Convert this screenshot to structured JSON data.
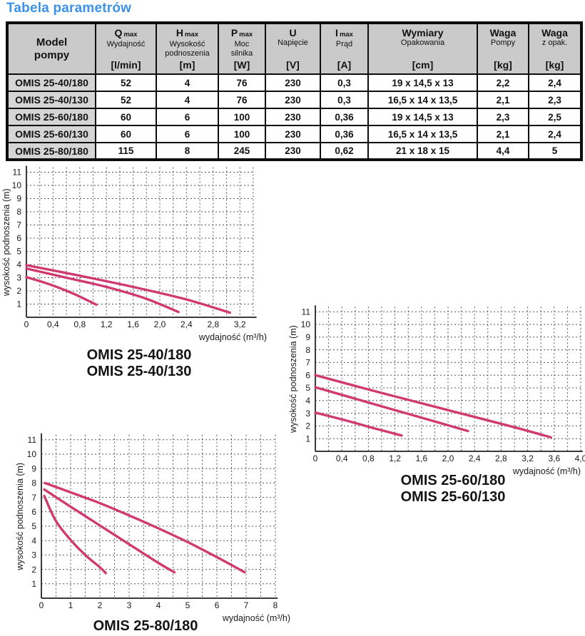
{
  "page_title": "Tabela parametrów",
  "colors": {
    "accent": "#3b92e8",
    "curve_pink": "#d13a6f",
    "grid": "#565656",
    "axis": "#3a3a3a",
    "table_header_bg": "#cacaca",
    "model_column_bg": "#d5d5d5"
  },
  "table": {
    "model_header": [
      "Model",
      "pompy"
    ],
    "columns": [
      {
        "symbol": "Q",
        "sub": "max",
        "desc": [
          "Wydajność"
        ],
        "unit": "[l/min]"
      },
      {
        "symbol": "H",
        "sub": "max",
        "desc": [
          "Wysokość",
          "podnoszenia"
        ],
        "unit": "[m]"
      },
      {
        "symbol": "P",
        "sub": "max",
        "desc": [
          "Moc",
          "silnika"
        ],
        "unit": "[W]"
      },
      {
        "symbol": "U",
        "sub": "",
        "desc": [
          "Napięcie"
        ],
        "unit": "[V]"
      },
      {
        "symbol": "I",
        "sub": "max",
        "desc": [
          "Prąd"
        ],
        "unit": "[A]"
      },
      {
        "symbol": "Wymiary",
        "sub": "",
        "desc": [
          "Opakowania"
        ],
        "unit": "[cm]"
      },
      {
        "symbol": "Waga",
        "sub": "",
        "desc": [
          "Pompy"
        ],
        "unit": "[kg]"
      },
      {
        "symbol": "Waga",
        "sub": "",
        "desc": [
          "z opak."
        ],
        "unit": "[kg]"
      }
    ],
    "rows": [
      [
        "OMIS 25-40/180",
        "52",
        "4",
        "76",
        "230",
        "0,3",
        "19 x 14,5 x 13",
        "2,2",
        "2,4"
      ],
      [
        "OMIS 25-40/130",
        "52",
        "4",
        "76",
        "230",
        "0,3",
        "16,5 x 14 x 13,5",
        "2,1",
        "2,3"
      ],
      [
        "OMIS 25-60/180",
        "60",
        "6",
        "100",
        "230",
        "0,36",
        "19 x 14,5 x 13",
        "2,3",
        "2,5"
      ],
      [
        "OMIS 25-60/130",
        "60",
        "6",
        "100",
        "230",
        "0,36",
        "16,5 x 14 x 13,5",
        "2,1",
        "2,4"
      ],
      [
        "OMIS 25-80/180",
        "115",
        "8",
        "245",
        "230",
        "0,62",
        "21 x 18 x 15",
        "4,4",
        "5"
      ]
    ]
  },
  "chart_data": [
    {
      "type": "line",
      "title_lines": [
        "OMIS 25-40/180",
        "OMIS 25-40/130"
      ],
      "xlabel": "wydajność (m³/h)",
      "ylabel": "wysokość podnoszenia (m)",
      "xlim": [
        0,
        3.45
      ],
      "ylim": [
        0,
        11.6
      ],
      "x_tick_step": 0.4,
      "x_minor_step": 0.2,
      "x_grid_end": 3.4,
      "x_tick_labels": [
        "0",
        "0,4",
        "0,8",
        "1,2",
        "1,6",
        "2,0",
        "2,4",
        "2,8",
        "3,2"
      ],
      "y_ticks": [
        1,
        2,
        3,
        4,
        5,
        6,
        7,
        8,
        9,
        10,
        11
      ],
      "grid": true,
      "legend": "none",
      "series": [
        {
          "name": "curve-1",
          "points": [
            [
              0,
              3.95
            ],
            [
              0.8,
              3.15
            ],
            [
              1.6,
              2.3
            ],
            [
              2.4,
              1.35
            ],
            [
              3.05,
              0.35
            ]
          ]
        },
        {
          "name": "curve-2",
          "points": [
            [
              0,
              3.7
            ],
            [
              0.6,
              3.0
            ],
            [
              1.2,
              2.3
            ],
            [
              1.8,
              1.4
            ],
            [
              2.28,
              0.4
            ]
          ]
        },
        {
          "name": "curve-3",
          "points": [
            [
              0,
              3.05
            ],
            [
              0.35,
              2.5
            ],
            [
              0.7,
              1.8
            ],
            [
              1.05,
              0.95
            ]
          ]
        }
      ]
    },
    {
      "type": "line",
      "title_lines": [
        "OMIS 25-60/180",
        "OMIS 25-60/130"
      ],
      "xlabel": "wydajność (m³/h)",
      "ylabel": "wysokość podnoszenia (m)",
      "xlim": [
        0,
        4.03
      ],
      "ylim": [
        0,
        11.6
      ],
      "x_tick_step": 0.4,
      "x_minor_step": 0.2,
      "x_grid_end": 4.0,
      "x_tick_labels": [
        "0",
        "0,4",
        "0,8",
        "1,2",
        "1,6",
        "2,0",
        "2,4",
        "2,8",
        "3,2",
        "3,6",
        "4,0"
      ],
      "y_ticks": [
        1,
        2,
        3,
        4,
        5,
        6,
        7,
        8,
        9,
        10,
        11
      ],
      "grid": true,
      "legend": "none",
      "series": [
        {
          "name": "curve-1",
          "points": [
            [
              0,
              6.0
            ],
            [
              1.0,
              4.6
            ],
            [
              2.0,
              3.25
            ],
            [
              3.0,
              1.9
            ],
            [
              3.55,
              1.1
            ]
          ]
        },
        {
          "name": "curve-2",
          "points": [
            [
              0,
              5.05
            ],
            [
              0.8,
              3.85
            ],
            [
              1.6,
              2.65
            ],
            [
              2.3,
              1.6
            ]
          ]
        },
        {
          "name": "curve-3",
          "points": [
            [
              0,
              3.05
            ],
            [
              0.45,
              2.45
            ],
            [
              0.9,
              1.8
            ],
            [
              1.3,
              1.25
            ]
          ]
        }
      ]
    },
    {
      "type": "line",
      "title_lines": [
        "OMIS 25-80/180"
      ],
      "xlabel": "wydajność (m³/h)",
      "ylabel": "wysokość podnoszenia (m)",
      "xlim": [
        0,
        8.08
      ],
      "ylim": [
        0,
        11.3
      ],
      "x_tick_step": 1,
      "x_minor_step": 0.5,
      "x_grid_end": 8.0,
      "x_tick_labels": [
        "0",
        "1",
        "2",
        "3",
        "4",
        "5",
        "6",
        "7",
        "8"
      ],
      "y_ticks": [
        1,
        2,
        3,
        4,
        5,
        6,
        7,
        8,
        9,
        10,
        11
      ],
      "grid": true,
      "legend": "none",
      "series": [
        {
          "name": "curve-1",
          "points": [
            [
              0.12,
              8.0
            ],
            [
              1,
              7.35
            ],
            [
              2,
              6.6
            ],
            [
              3,
              5.75
            ],
            [
              4,
              4.85
            ],
            [
              5,
              3.9
            ],
            [
              6,
              2.85
            ],
            [
              6.95,
              1.8
            ]
          ]
        },
        {
          "name": "curve-2",
          "points": [
            [
              0.1,
              7.55
            ],
            [
              1,
              6.35
            ],
            [
              2,
              5.05
            ],
            [
              3,
              3.75
            ],
            [
              4,
              2.45
            ],
            [
              4.55,
              1.8
            ]
          ]
        },
        {
          "name": "curve-3",
          "points": [
            [
              0.1,
              7.1
            ],
            [
              0.5,
              5.35
            ],
            [
              1,
              4.05
            ],
            [
              1.5,
              3.0
            ],
            [
              2,
              2.15
            ],
            [
              2.2,
              1.75
            ]
          ]
        }
      ]
    }
  ]
}
